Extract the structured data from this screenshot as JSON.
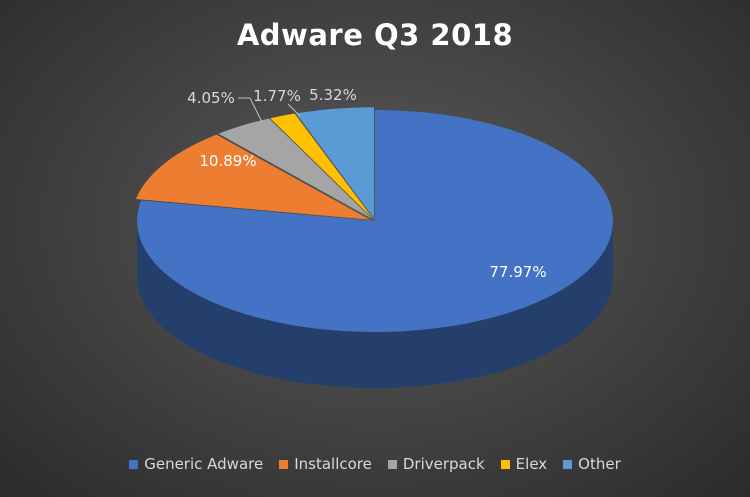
{
  "chart_data": {
    "type": "pie",
    "title": "Adware Q3 2018",
    "slices": [
      {
        "label": "Generic Adware",
        "value": 77.97,
        "display": "77.97%",
        "color": "#4472C4"
      },
      {
        "label": "Installcore",
        "value": 10.89,
        "display": "10.89%",
        "color": "#ED7D31"
      },
      {
        "label": "Driverpack",
        "value": 4.05,
        "display": "4.05%",
        "color": "#A5A5A5"
      },
      {
        "label": "Elex",
        "value": 1.77,
        "display": "1.77%",
        "color": "#FFC000"
      },
      {
        "label": "Other",
        "value": 5.32,
        "display": "5.32%",
        "color": "#5B9BD5"
      }
    ],
    "legend_position": "bottom",
    "style": "3d-pie"
  }
}
